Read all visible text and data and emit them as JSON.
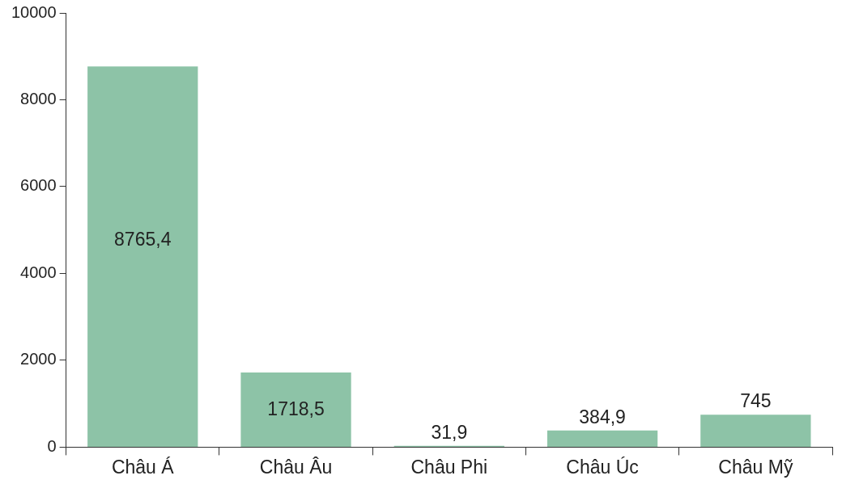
{
  "chart_data": {
    "type": "bar",
    "categories": [
      "Châu Á",
      "Châu Âu",
      "Châu Phi",
      "Châu Úc",
      "Châu Mỹ"
    ],
    "values": [
      8765.4,
      1718.5,
      31.9,
      384.9,
      745
    ],
    "value_labels": [
      "8765,4",
      "1718,5",
      "31,9",
      "384,9",
      "745"
    ],
    "color": "#8dc3a7",
    "ylim": [
      0,
      10000
    ],
    "yticks": [
      0,
      2000,
      4000,
      6000,
      8000,
      10000
    ],
    "grid": false,
    "legend": false
  }
}
